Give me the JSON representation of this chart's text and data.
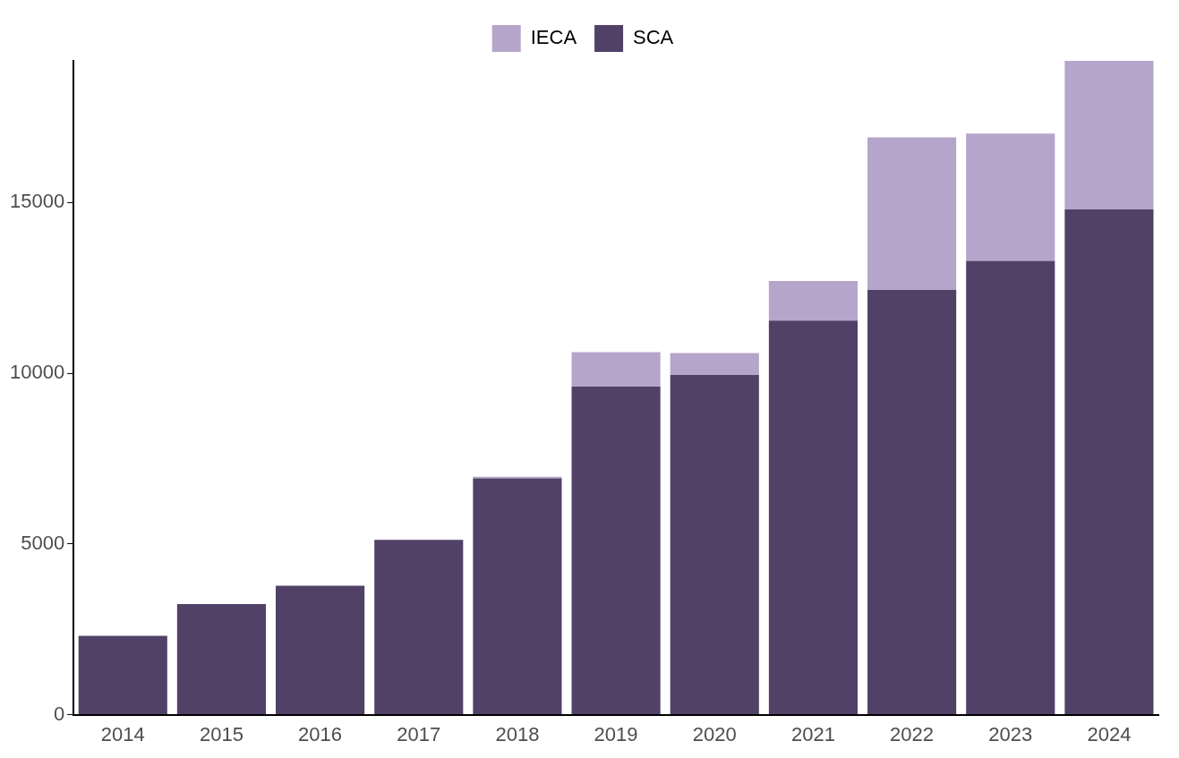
{
  "chart_data": {
    "type": "bar",
    "stacked": true,
    "legend": "top",
    "categories": [
      "2014",
      "2015",
      "2016",
      "2017",
      "2018",
      "2019",
      "2020",
      "2021",
      "2022",
      "2023",
      "2024"
    ],
    "series": [
      {
        "name": "SCA",
        "color": "#514167",
        "values": [
          2310,
          3240,
          3780,
          5120,
          6920,
          9610,
          9950,
          11540,
          12440,
          13290,
          14800
        ]
      },
      {
        "name": "IECA",
        "color": "#b6a5ca",
        "values": [
          null,
          null,
          null,
          null,
          50,
          1010,
          640,
          1160,
          4470,
          3730,
          4350
        ]
      }
    ],
    "ylim": [
      0,
      19150
    ],
    "yticks": [
      0,
      5000,
      10000,
      15000
    ],
    "grid": false
  }
}
